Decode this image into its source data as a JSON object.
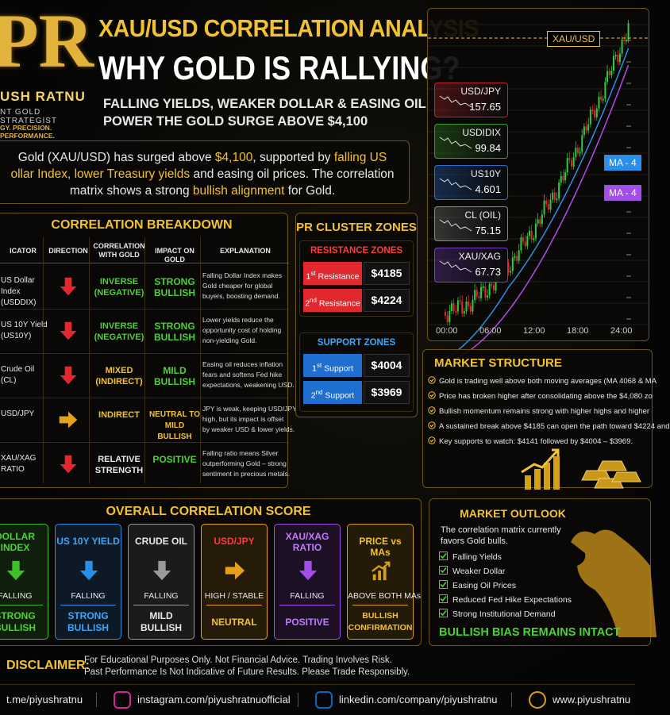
{
  "header": {
    "logo_letters": "PR",
    "logo_name": "USH RATNU",
    "logo_role": "NT GOLD STRATEGIST",
    "logo_tagline": "GY. PRECISION. PERFORMANCE.",
    "title": "XAU/USD CORRELATION ANALYSIS",
    "subtitle": "WHY GOLD IS RALLYING?",
    "tagline_lines": [
      "FALLING YIELDS, WEAKER DOLLAR & EASING OIL",
      "POWER THE GOLD SURGE ABOVE $4,100"
    ]
  },
  "intro": {
    "lines": [
      [
        {
          "text": " Gold (XAU/USD) has surged above "
        },
        {
          "text": "$4,100",
          "highlight": true
        },
        {
          "text": ", supported by "
        },
        {
          "text": "falling US",
          "highlight": true
        }
      ],
      [
        {
          "text": "ollar Index, lower Treasury yields",
          "highlight": true
        },
        {
          "text": " and easing oil prices. The correlation"
        }
      ],
      [
        {
          "text": "matrix shows a strong "
        },
        {
          "text": "bullish alignment",
          "highlight": true
        },
        {
          "text": " for Gold."
        }
      ]
    ]
  },
  "chart": {
    "price_label": "XAU/USD",
    "ma_labels": [
      "MA - 4",
      "MA - 4"
    ],
    "x_labels": [
      "00:00",
      "06:00",
      "12:00",
      "18:00",
      "24:00"
    ],
    "tickers": [
      {
        "name": "USD/JPY",
        "value": "157.65",
        "color": "#c0272d"
      },
      {
        "name": "USDIDIX",
        "value": "99.84",
        "color": "#3a9a2a"
      },
      {
        "name": "US10Y",
        "value": "4.601",
        "color": "#2a6fd6"
      },
      {
        "name": "CL (OIL)",
        "value": "75.15",
        "color": "#8a8a8a"
      },
      {
        "name": "XAU/XAG",
        "value": "67.73",
        "color": "#7a3fc4"
      }
    ]
  },
  "breakdown": {
    "title": "CORRELATION BREAKDOWN",
    "headers": [
      [
        "ICATOR"
      ],
      [
        "DIRECTION"
      ],
      [
        "CORRELATION",
        "WITH GOLD"
      ],
      [
        "IMPACT ON GOLD"
      ],
      [
        "EXPLANATION"
      ]
    ],
    "rows": [
      {
        "indicator": [
          "US Dollar Index",
          "(USDDIX)"
        ],
        "direction": "down",
        "correlation": [
          "INVERSE",
          "(NEGATIVE)"
        ],
        "correlation_color": "#4cd137",
        "impact": [
          "STRONG",
          "BULLISH"
        ],
        "impact_color": "#4cd137",
        "explanation": [
          "Falling Dollar Index makes",
          "Gold cheaper for global",
          "buyers, boosting demand."
        ]
      },
      {
        "indicator": [
          "US 10Y Yield",
          "(US10Y)"
        ],
        "direction": "down",
        "correlation": [
          "INVERSE",
          "(NEGATIVE)"
        ],
        "correlation_color": "#4cd137",
        "impact": [
          "STRONG",
          "BULLISH"
        ],
        "impact_color": "#4cd137",
        "explanation": [
          "Lower yields reduce the",
          "opportunity cost of holding",
          "non-yielding Gold."
        ]
      },
      {
        "indicator": [
          "Crude Oil",
          "(CL)"
        ],
        "direction": "down",
        "correlation": [
          "MIXED",
          "(INDIRECT)"
        ],
        "correlation_color": "#f2c230",
        "impact": [
          "MILD",
          "BULLISH"
        ],
        "impact_color": "#4cd137",
        "explanation": [
          "Easing oil reduces inflation",
          "fears and softens Fed hike",
          "expectations, weakening USD."
        ]
      },
      {
        "indicator": [
          "USD/JPY"
        ],
        "direction": "right",
        "correlation": [
          "INDIRECT"
        ],
        "correlation_color": "#f2c230",
        "impact": [
          "NEUTRAL TO",
          "MILD BULLISH"
        ],
        "impact_color": "#f2c230",
        "explanation": [
          "JPY is weak, keeping USD/JPY",
          "high, but its impact is offset",
          "by weaker USD & lower yields."
        ]
      },
      {
        "indicator": [
          "XAU/XAG",
          "RATIO"
        ],
        "direction": "down",
        "correlation": [
          "RELATIVE",
          "STRENGTH"
        ],
        "correlation_color": "#e8e8e8",
        "impact": [
          "POSITIVE"
        ],
        "impact_color": "#4cd137",
        "explanation": [
          "Falling ratio means Silver",
          "outperforming Gold – strong",
          "sentiment in precious metals."
        ]
      }
    ]
  },
  "cluster": {
    "title": "PR CLUSTER ZONES",
    "groups": [
      {
        "title": "RESISTANCE ZONES",
        "color": "#e0282e",
        "items": [
          {
            "num": "1",
            "sup": "st",
            "label": " Resistance",
            "price": "$4185"
          },
          {
            "num": "2",
            "sup": "nd",
            "label": " Resistance",
            "price": "$4224"
          }
        ]
      },
      {
        "title": "SUPPORT ZONES",
        "color": "#1f6fd1",
        "items": [
          {
            "num": "1",
            "sup": "st",
            "label": " Support",
            "price": "$4004"
          },
          {
            "num": "2",
            "sup": "nd",
            "label": " Support",
            "price": "$3969"
          }
        ]
      }
    ]
  },
  "structure": {
    "title": "MARKET STRUCTURE",
    "bullets": [
      "Gold is trading well above both moving averages (MA 4068 & MA",
      "Price has broken higher after consolidating above the $4,080 zo",
      "Bullish momentum remains strong with higher highs and higher",
      "A sustained break above $4185 can open the path toward $4224 and",
      "Key supports to watch: $4141 followed by $4004 – $3969."
    ]
  },
  "overall": {
    "title": "OVERALL CORRELATION SCORE",
    "cards": [
      {
        "name": [
          "DOLLAR",
          "INDEX"
        ],
        "name_color": "#4cd137",
        "icon": "down",
        "color": "#3fbf2a",
        "status": "FALLING",
        "verdict": [
          "STRONG",
          "BULLISH"
        ],
        "verdict_color": "#4cd137"
      },
      {
        "name": [
          "US 10Y YIELD"
        ],
        "name_color": "#3aa8ff",
        "icon": "down",
        "color": "#2a8fe8",
        "status": "FALLING",
        "verdict": [
          "STRONG",
          "BULLISH"
        ],
        "verdict_color": "#3aa8ff"
      },
      {
        "name": [
          "CRUDE OIL"
        ],
        "name_color": "#e8e8e8",
        "icon": "down",
        "color": "#9a9a9a",
        "status": "FALLING",
        "verdict": [
          "MILD",
          "BULLISH"
        ],
        "verdict_color": "#e8e8e8"
      },
      {
        "name": [
          "USD/JPY"
        ],
        "name_color": "#ff3b3b",
        "icon": "right",
        "color": "#e6a11a",
        "status": "HIGH / STABLE",
        "verdict": [
          "NEUTRAL"
        ],
        "verdict_color": "#f2c230"
      },
      {
        "name": [
          "XAU/XAG",
          "RATIO"
        ],
        "name_color": "#c07bff",
        "icon": "down",
        "color": "#a24ee8",
        "status": "FALLING",
        "verdict": [
          "POSITIVE"
        ],
        "verdict_color": "#c07bff"
      },
      {
        "name": [
          "PRICE vs MAs"
        ],
        "name_color": "#f2c230",
        "icon": "chart",
        "color": "#d4a017",
        "status": "ABOVE BOTH MAs",
        "verdict": [
          "BULLISH",
          "CONFIRMATION"
        ],
        "verdict_color": "#f2c230"
      }
    ]
  },
  "outlook": {
    "title": "MARKET OUTLOOK",
    "intro": [
      "The correlation matrix currently",
      "favors Gold bulls."
    ],
    "checks": [
      "Falling Yields",
      "Weaker Dollar",
      "Easing Oil Prices",
      "Reduced Fed Hike Expectations",
      "Strong Institutional Demand"
    ],
    "banner": "BULLISH BIAS REMAINS INTACT"
  },
  "disclaimer": {
    "label": "DISCLAIMER:",
    "lines": [
      "For Educational Purposes Only. Not Financial Advice. Trading Involves Risk.",
      "Past Performance Is Not Indicative of Future Results. Please Trade Responsibly."
    ]
  },
  "footer": {
    "links": [
      "t.me/piyushratnu",
      "instagram.com/piyushratnuofficial",
      "linkedin.com/company/piyushratnu",
      "www.piyushratnu"
    ]
  }
}
